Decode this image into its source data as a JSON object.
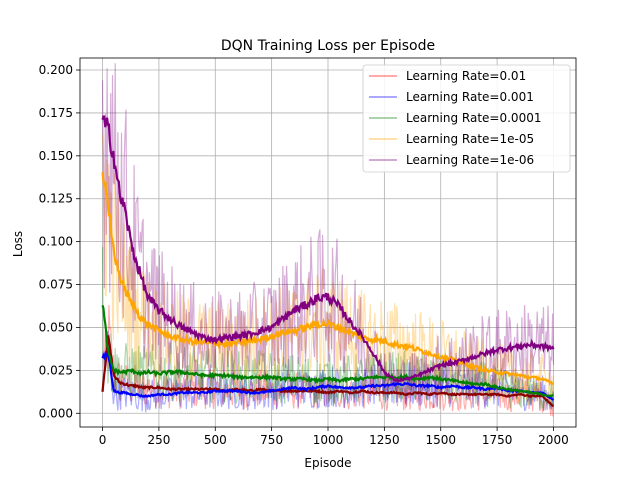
{
  "chart_data": {
    "type": "line",
    "title": "DQN Training Loss per Episode",
    "xlabel": "Episode",
    "ylabel": "Loss",
    "xlim": [
      -100,
      2100
    ],
    "ylim": [
      -0.008,
      0.207
    ],
    "xticks": [
      0,
      250,
      500,
      750,
      1000,
      1250,
      1500,
      1750,
      2000
    ],
    "xtick_labels": [
      "0",
      "250",
      "500",
      "750",
      "1000",
      "1250",
      "1500",
      "1750",
      "2000"
    ],
    "yticks": [
      0.0,
      0.025,
      0.05,
      0.075,
      0.1,
      0.125,
      0.15,
      0.175,
      0.2
    ],
    "ytick_labels": [
      "0.000",
      "0.025",
      "0.050",
      "0.075",
      "0.100",
      "0.125",
      "0.150",
      "0.175",
      "0.200"
    ],
    "grid": true,
    "legend_position": "top-right",
    "x": [
      0,
      25,
      50,
      75,
      100,
      125,
      150,
      175,
      200,
      250,
      300,
      350,
      400,
      450,
      500,
      550,
      600,
      650,
      700,
      750,
      800,
      850,
      900,
      950,
      1000,
      1050,
      1100,
      1150,
      1200,
      1250,
      1300,
      1350,
      1400,
      1450,
      1500,
      1550,
      1600,
      1650,
      1700,
      1750,
      1800,
      1850,
      1900,
      1950,
      2000
    ],
    "series": [
      {
        "name": "Learning Rate=0.01",
        "color": "#ff0000",
        "smoothed_color": "#8b0000",
        "values": [
          0.013,
          0.045,
          0.022,
          0.018,
          0.017,
          0.016,
          0.016,
          0.015,
          0.015,
          0.015,
          0.014,
          0.014,
          0.014,
          0.014,
          0.014,
          0.013,
          0.014,
          0.013,
          0.014,
          0.013,
          0.013,
          0.013,
          0.013,
          0.013,
          0.012,
          0.013,
          0.012,
          0.013,
          0.012,
          0.012,
          0.012,
          0.011,
          0.012,
          0.011,
          0.012,
          0.011,
          0.011,
          0.011,
          0.011,
          0.011,
          0.01,
          0.011,
          0.01,
          0.01,
          0.004
        ]
      },
      {
        "name": "Learning Rate=0.001",
        "color": "#0000ff",
        "smoothed_color": "#0000ff",
        "values": [
          0.032,
          0.035,
          0.013,
          0.012,
          0.012,
          0.011,
          0.011,
          0.01,
          0.01,
          0.011,
          0.011,
          0.012,
          0.012,
          0.012,
          0.013,
          0.013,
          0.013,
          0.012,
          0.012,
          0.013,
          0.014,
          0.015,
          0.014,
          0.015,
          0.016,
          0.015,
          0.015,
          0.015,
          0.016,
          0.016,
          0.017,
          0.017,
          0.016,
          0.016,
          0.015,
          0.016,
          0.015,
          0.015,
          0.014,
          0.015,
          0.013,
          0.013,
          0.012,
          0.012,
          0.008
        ]
      },
      {
        "name": "Learning Rate=0.0001",
        "color": "#008000",
        "smoothed_color": "#008000",
        "values": [
          0.065,
          0.035,
          0.025,
          0.024,
          0.024,
          0.025,
          0.024,
          0.023,
          0.024,
          0.023,
          0.024,
          0.024,
          0.023,
          0.022,
          0.022,
          0.022,
          0.021,
          0.021,
          0.021,
          0.021,
          0.02,
          0.02,
          0.02,
          0.019,
          0.02,
          0.019,
          0.02,
          0.02,
          0.021,
          0.021,
          0.021,
          0.021,
          0.02,
          0.021,
          0.02,
          0.019,
          0.018,
          0.017,
          0.017,
          0.015,
          0.014,
          0.013,
          0.012,
          0.011,
          0.01
        ]
      },
      {
        "name": "Learning Rate=1e-05",
        "color": "#ffa500",
        "smoothed_color": "#ffa500",
        "values": [
          0.142,
          0.118,
          0.095,
          0.08,
          0.072,
          0.065,
          0.06,
          0.055,
          0.052,
          0.048,
          0.045,
          0.043,
          0.042,
          0.041,
          0.041,
          0.04,
          0.041,
          0.042,
          0.043,
          0.045,
          0.047,
          0.048,
          0.05,
          0.052,
          0.052,
          0.05,
          0.047,
          0.044,
          0.043,
          0.042,
          0.04,
          0.039,
          0.037,
          0.035,
          0.033,
          0.031,
          0.029,
          0.027,
          0.025,
          0.024,
          0.023,
          0.022,
          0.021,
          0.02,
          0.017
        ]
      },
      {
        "name": "Learning Rate=1e-06",
        "color": "#800080",
        "smoothed_color": "#800080",
        "values": [
          0.17,
          0.165,
          0.15,
          0.128,
          0.118,
          0.1,
          0.088,
          0.078,
          0.068,
          0.06,
          0.055,
          0.05,
          0.047,
          0.044,
          0.043,
          0.044,
          0.045,
          0.046,
          0.048,
          0.05,
          0.055,
          0.06,
          0.063,
          0.067,
          0.068,
          0.062,
          0.053,
          0.045,
          0.035,
          0.024,
          0.019,
          0.02,
          0.022,
          0.025,
          0.028,
          0.029,
          0.031,
          0.033,
          0.035,
          0.037,
          0.038,
          0.039,
          0.04,
          0.039,
          0.038
        ]
      }
    ]
  }
}
